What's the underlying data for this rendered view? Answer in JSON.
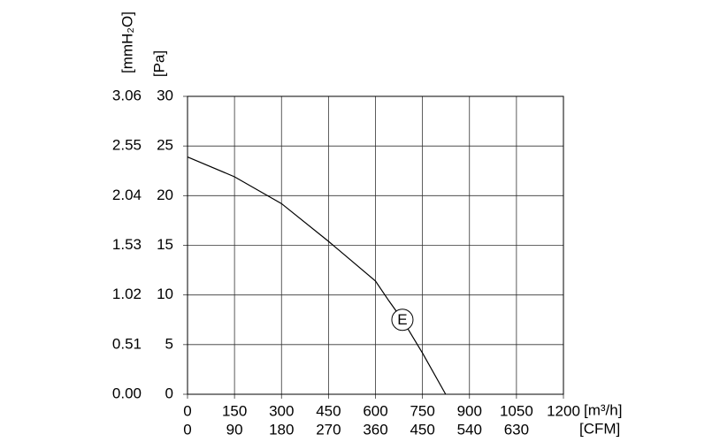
{
  "chart_data": {
    "type": "line",
    "x_label": "[m³/h]",
    "x2_label": "[CFM]",
    "y_label": "[Pa]",
    "y2_label": "[mmH₂O]",
    "xlim": [
      0,
      1200
    ],
    "xticks": [
      0,
      150,
      300,
      450,
      600,
      750,
      900,
      1050,
      1200
    ],
    "x2lim": [
      0,
      720
    ],
    "x2ticks": [
      0,
      90,
      180,
      270,
      360,
      450,
      540,
      630
    ],
    "ylim": [
      0,
      30
    ],
    "yticks": [
      0,
      5,
      10,
      15,
      20,
      25,
      30
    ],
    "y2lim": [
      0,
      3.06
    ],
    "y2ticks": [
      {
        "value": 0,
        "label": "0.00"
      },
      0.51,
      1.02,
      1.53,
      2.04,
      2.55,
      3.06
    ],
    "grid": true,
    "series": [
      {
        "color": "#000000",
        "x": [
          0,
          150,
          300,
          450,
          600,
          643,
          686,
          751,
          824
        ],
        "values": [
          23.9,
          21.9,
          19.2,
          15.4,
          11.4,
          9.4,
          7.5,
          4.1,
          0
        ]
      }
    ],
    "annotations": [
      {
        "text": "E",
        "x": 686,
        "y": 7.5
      }
    ]
  }
}
